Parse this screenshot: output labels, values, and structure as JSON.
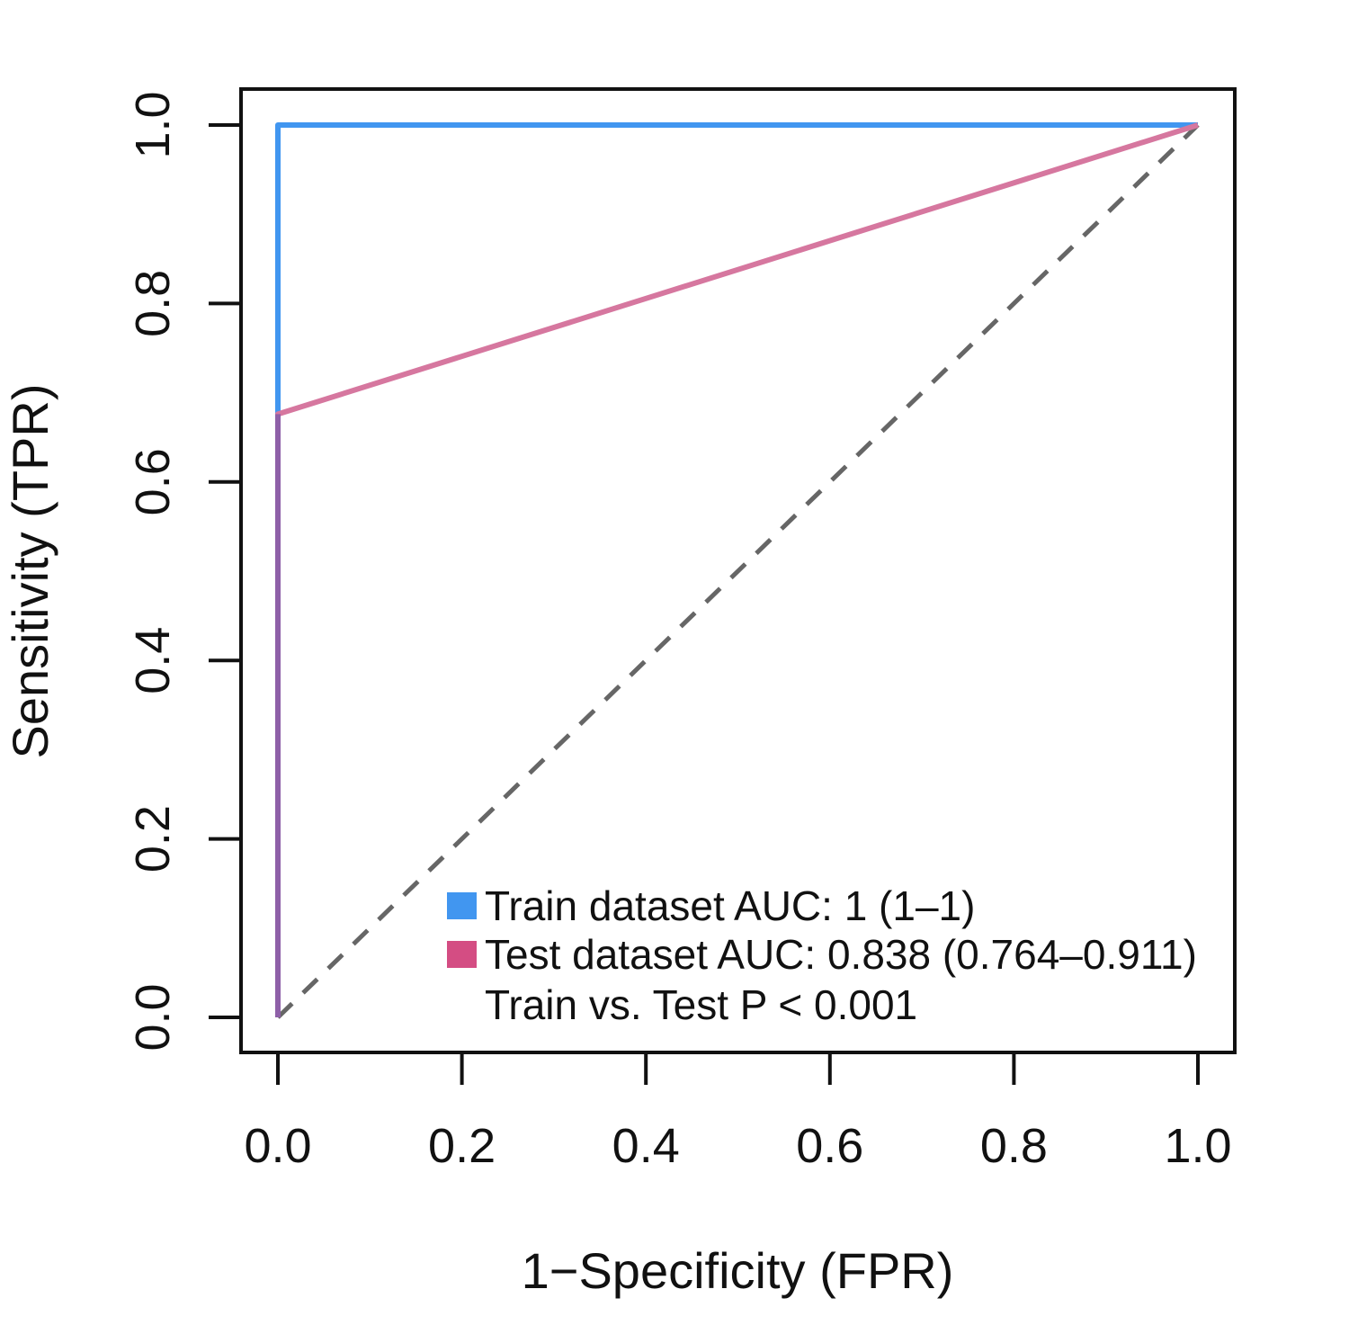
{
  "chart_data": {
    "type": "line",
    "title": "",
    "xlabel": "1−Specificity (FPR)",
    "ylabel": "Sensitivity (TPR)",
    "xlim": [
      0,
      1
    ],
    "ylim": [
      0,
      1
    ],
    "xticks": [
      "0.0",
      "0.2",
      "0.4",
      "0.6",
      "0.8",
      "1.0"
    ],
    "yticks": [
      "0.0",
      "0.2",
      "0.4",
      "0.6",
      "0.8",
      "1.0"
    ],
    "grid": false,
    "legend_position": "bottom-right",
    "series": [
      {
        "name": "Train dataset AUC: 1 (1–1)",
        "color": "#4196f0",
        "x": [
          0,
          0,
          1
        ],
        "y": [
          0,
          1,
          1
        ]
      },
      {
        "name": "Test dataset AUC: 0.838 (0.764–0.911)",
        "color": "#d6779f",
        "legend_color": "#d44d83",
        "x": [
          0,
          0,
          1
        ],
        "y": [
          0,
          0.676,
          1
        ]
      }
    ],
    "reference_line": {
      "x": [
        0,
        1
      ],
      "y": [
        0,
        1
      ],
      "color": "#666666",
      "style": "dashed"
    },
    "overlap_color": "#8e60a8",
    "annotation": "Train vs. Test P < 0.001"
  }
}
